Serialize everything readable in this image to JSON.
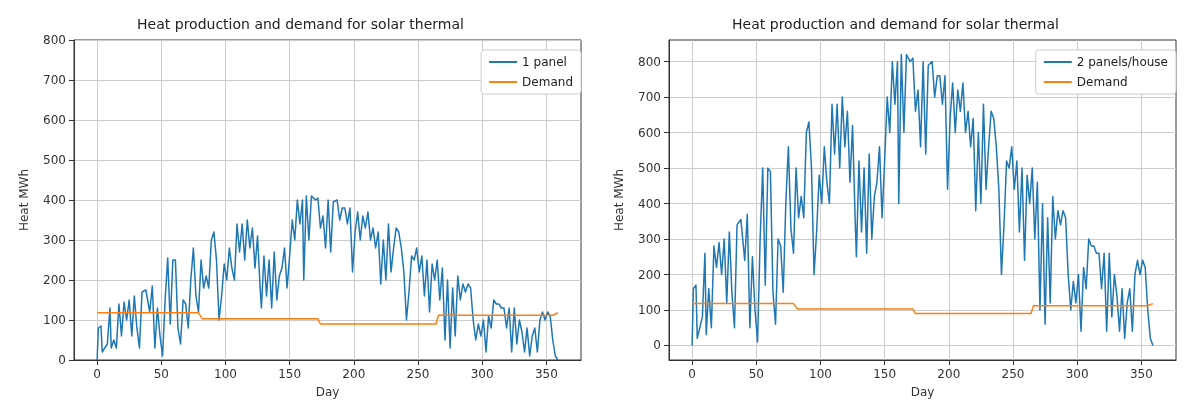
{
  "chart_data": [
    {
      "type": "line",
      "title": "Heat production and demand for solar thermal",
      "xlabel": "Day",
      "ylabel": "Heat MWh",
      "xlim": [
        -18,
        377
      ],
      "xticks": [
        0,
        50,
        100,
        150,
        200,
        250,
        300,
        350
      ],
      "ylim": [
        0,
        800
      ],
      "yticks": [
        0,
        100,
        200,
        300,
        400,
        500,
        600,
        700,
        800
      ],
      "grid": true,
      "legend": "top right",
      "marker": "none",
      "line_style": "solid",
      "x": [
        0,
        1,
        3,
        4,
        6,
        8,
        10,
        11,
        13,
        15,
        17,
        19,
        21,
        23,
        25,
        27,
        29,
        31,
        33,
        35,
        38,
        41,
        43,
        45,
        47,
        49,
        51,
        53,
        55,
        57,
        59,
        61,
        63,
        65,
        67,
        69,
        71,
        73,
        75,
        77,
        79,
        81,
        83,
        85,
        87,
        89,
        91,
        93,
        95,
        97,
        99,
        101,
        103,
        105,
        107,
        109,
        111,
        113,
        115,
        117,
        119,
        121,
        123,
        125,
        127,
        128,
        130,
        132,
        134,
        136,
        138,
        140,
        142,
        144,
        146,
        148,
        150,
        152,
        154,
        156,
        158,
        160,
        161,
        163,
        165,
        167,
        170,
        172,
        174,
        176,
        178,
        180,
        182,
        184,
        187,
        189,
        191,
        193,
        195,
        197,
        199,
        201,
        203,
        205,
        207,
        209,
        211,
        213,
        215,
        217,
        219,
        221,
        223,
        225,
        227,
        229,
        231,
        233,
        235,
        237,
        239,
        241,
        243,
        245,
        247,
        249,
        251,
        253,
        255,
        257,
        259,
        261,
        263,
        265,
        267,
        269,
        271,
        273,
        275,
        277,
        279,
        281,
        283,
        285,
        287,
        289,
        291,
        293,
        295,
        297,
        299,
        301,
        303,
        305,
        307,
        309,
        311,
        313,
        315,
        317,
        319,
        321,
        323,
        325,
        327,
        329,
        331,
        333,
        335,
        337,
        339,
        341,
        343,
        345,
        347,
        349,
        351,
        353,
        355,
        357,
        359
      ],
      "series": [
        {
          "name": "1 panel",
          "color": "#1f77b4",
          "values": [
            0,
            80,
            85,
            20,
            30,
            40,
            130,
            30,
            50,
            30,
            140,
            60,
            145,
            100,
            150,
            60,
            160,
            80,
            30,
            170,
            175,
            120,
            185,
            30,
            130,
            60,
            10,
            150,
            255,
            90,
            250,
            250,
            80,
            40,
            150,
            140,
            80,
            200,
            280,
            160,
            120,
            250,
            180,
            210,
            180,
            300,
            320,
            250,
            100,
            160,
            240,
            200,
            280,
            230,
            200,
            340,
            270,
            340,
            250,
            350,
            280,
            330,
            230,
            310,
            180,
            130,
            260,
            160,
            250,
            130,
            270,
            150,
            210,
            230,
            280,
            180,
            260,
            350,
            300,
            400,
            340,
            400,
            200,
            410,
            300,
            410,
            400,
            405,
            330,
            360,
            280,
            400,
            270,
            395,
            400,
            350,
            380,
            380,
            340,
            380,
            220,
            320,
            370,
            300,
            360,
            330,
            370,
            300,
            330,
            280,
            320,
            190,
            300,
            200,
            340,
            220,
            280,
            330,
            320,
            280,
            220,
            100,
            170,
            260,
            250,
            280,
            220,
            260,
            160,
            250,
            120,
            240,
            200,
            250,
            150,
            230,
            50,
            200,
            30,
            180,
            60,
            210,
            150,
            190,
            170,
            190,
            180,
            100,
            50,
            90,
            60,
            100,
            20,
            110,
            80,
            150,
            140,
            140,
            130,
            130,
            80,
            130,
            20,
            130,
            40,
            100,
            70,
            20,
            80,
            10,
            60,
            80,
            20,
            100,
            120,
            100,
            120,
            110,
            50,
            10,
            0
          ]
        },
        {
          "name": "Demand",
          "color": "#ff7f0e",
          "x": [
            0,
            79,
            82,
            172,
            174,
            264,
            266,
            355,
            359
          ],
          "values": [
            118,
            118,
            103,
            103,
            90,
            90,
            112,
            112,
            118
          ]
        }
      ]
    },
    {
      "type": "line",
      "title": "Heat production and demand for solar thermal",
      "xlabel": "Day",
      "ylabel": "Heat MWh",
      "xlim": [
        -18,
        377
      ],
      "xticks": [
        0,
        50,
        100,
        150,
        200,
        250,
        300,
        350
      ],
      "ylim": [
        -41,
        861
      ],
      "yticks": [
        0,
        100,
        200,
        300,
        400,
        500,
        600,
        700,
        800
      ],
      "grid": true,
      "legend": "top right",
      "marker": "none",
      "line_style": "solid",
      "x": [
        0,
        1,
        3,
        4,
        6,
        8,
        10,
        11,
        13,
        15,
        17,
        19,
        21,
        23,
        25,
        27,
        29,
        31,
        33,
        35,
        38,
        41,
        43,
        45,
        47,
        49,
        51,
        53,
        55,
        57,
        59,
        61,
        63,
        65,
        67,
        69,
        71,
        73,
        75,
        77,
        79,
        81,
        83,
        85,
        87,
        89,
        91,
        93,
        95,
        97,
        99,
        101,
        103,
        105,
        107,
        109,
        111,
        113,
        115,
        117,
        119,
        121,
        123,
        125,
        127,
        128,
        130,
        132,
        134,
        136,
        138,
        140,
        142,
        144,
        146,
        148,
        150,
        152,
        154,
        156,
        158,
        160,
        161,
        163,
        165,
        167,
        170,
        172,
        174,
        176,
        178,
        180,
        182,
        184,
        187,
        189,
        191,
        193,
        195,
        197,
        199,
        201,
        203,
        205,
        207,
        209,
        211,
        213,
        215,
        217,
        219,
        221,
        223,
        225,
        227,
        229,
        231,
        233,
        235,
        237,
        239,
        241,
        243,
        245,
        247,
        249,
        251,
        253,
        255,
        257,
        259,
        261,
        263,
        265,
        267,
        269,
        271,
        273,
        275,
        277,
        279,
        281,
        283,
        285,
        287,
        289,
        291,
        293,
        295,
        297,
        299,
        301,
        303,
        305,
        307,
        309,
        311,
        313,
        315,
        317,
        319,
        321,
        323,
        325,
        327,
        329,
        331,
        333,
        335,
        337,
        339,
        341,
        343,
        345,
        347,
        349,
        351,
        353,
        355,
        357,
        359
      ],
      "series": [
        {
          "name": "2 panels/house",
          "color": "#1f77b4",
          "values": [
            0,
            160,
            170,
            20,
            50,
            80,
            260,
            30,
            160,
            50,
            280,
            220,
            290,
            200,
            300,
            120,
            320,
            150,
            50,
            340,
            355,
            240,
            370,
            50,
            250,
            100,
            10,
            300,
            500,
            170,
            500,
            490,
            150,
            60,
            300,
            280,
            150,
            400,
            560,
            330,
            260,
            500,
            360,
            420,
            360,
            600,
            630,
            500,
            200,
            320,
            480,
            400,
            560,
            460,
            400,
            680,
            540,
            680,
            500,
            700,
            560,
            660,
            460,
            620,
            360,
            250,
            520,
            320,
            500,
            260,
            540,
            300,
            420,
            460,
            560,
            360,
            520,
            700,
            600,
            800,
            680,
            800,
            400,
            820,
            600,
            820,
            800,
            810,
            660,
            720,
            560,
            800,
            540,
            790,
            800,
            700,
            760,
            760,
            680,
            760,
            440,
            640,
            740,
            600,
            720,
            660,
            740,
            600,
            660,
            560,
            640,
            380,
            600,
            400,
            680,
            440,
            560,
            660,
            640,
            560,
            440,
            200,
            340,
            520,
            500,
            560,
            440,
            520,
            320,
            500,
            240,
            480,
            400,
            500,
            300,
            460,
            100,
            400,
            60,
            360,
            120,
            420,
            300,
            380,
            340,
            380,
            360,
            200,
            100,
            180,
            120,
            200,
            40,
            220,
            160,
            300,
            280,
            280,
            260,
            260,
            160,
            260,
            40,
            260,
            80,
            200,
            140,
            40,
            160,
            20,
            120,
            160,
            40,
            200,
            240,
            200,
            240,
            220,
            100,
            20,
            0
          ]
        },
        {
          "name": "Demand",
          "color": "#ff7f0e",
          "x": [
            0,
            79,
            82,
            172,
            174,
            264,
            266,
            355,
            359
          ],
          "values": [
            118,
            118,
            103,
            103,
            90,
            90,
            112,
            112,
            118
          ]
        }
      ]
    }
  ]
}
